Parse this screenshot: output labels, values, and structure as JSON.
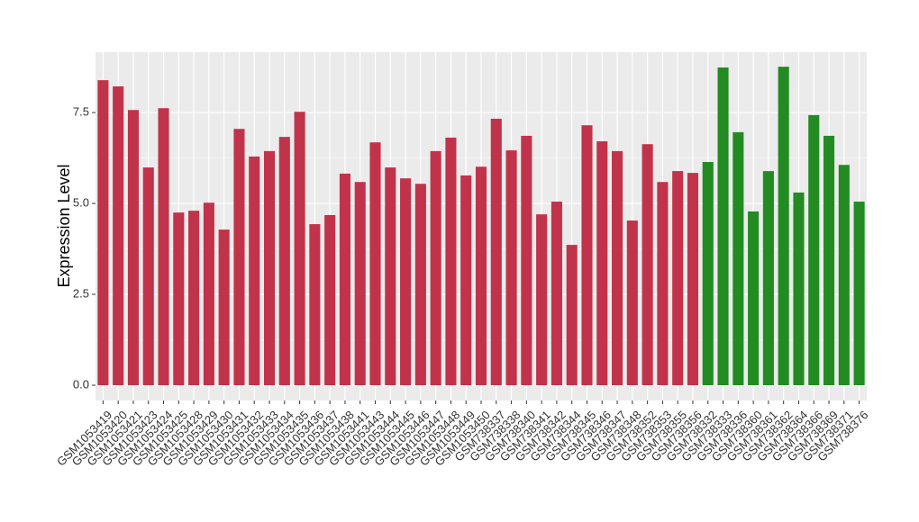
{
  "chart_data": {
    "type": "bar",
    "y_label": "Expression Level",
    "categories": [
      "GSM1053419",
      "GSM1053420",
      "GSM1053421",
      "GSM1053423",
      "GSM1053424",
      "GSM1053425",
      "GSM1053428",
      "GSM1053429",
      "GSM1053430",
      "GSM1053431",
      "GSM1053432",
      "GSM1053433",
      "GSM1053434",
      "GSM1053435",
      "GSM1053436",
      "GSM1053437",
      "GSM1053438",
      "GSM1053441",
      "GSM1053443",
      "GSM1053444",
      "GSM1053445",
      "GSM1053446",
      "GSM1053447",
      "GSM1053448",
      "GSM1053449",
      "GSM1053450",
      "GSM738337",
      "GSM738338",
      "GSM738340",
      "GSM738341",
      "GSM738342",
      "GSM738344",
      "GSM738345",
      "GSM738346",
      "GSM738347",
      "GSM738348",
      "GSM738352",
      "GSM738353",
      "GSM738355",
      "GSM738356",
      "GSM738332",
      "GSM738333",
      "GSM738336",
      "GSM738360",
      "GSM738361",
      "GSM738362",
      "GSM738364",
      "GSM738366",
      "GSM738369",
      "GSM738371",
      "GSM738376"
    ],
    "values": [
      8.39,
      8.22,
      7.57,
      5.99,
      7.62,
      4.75,
      4.8,
      5.02,
      4.28,
      7.05,
      6.29,
      6.44,
      6.83,
      7.52,
      4.43,
      4.68,
      5.82,
      5.59,
      6.68,
      5.99,
      5.69,
      5.54,
      6.44,
      6.81,
      5.77,
      6.01,
      7.33,
      6.46,
      6.86,
      4.7,
      5.05,
      3.86,
      7.15,
      6.71,
      6.44,
      4.53,
      6.63,
      5.59,
      5.89,
      5.84,
      6.14,
      8.74,
      6.96,
      4.78,
      5.89,
      8.76,
      5.3,
      7.43,
      6.86,
      6.06,
      5.05
    ],
    "colors": [
      "#c1334a",
      "#c1334a",
      "#c1334a",
      "#c1334a",
      "#c1334a",
      "#c1334a",
      "#c1334a",
      "#c1334a",
      "#c1334a",
      "#c1334a",
      "#c1334a",
      "#c1334a",
      "#c1334a",
      "#c1334a",
      "#c1334a",
      "#c1334a",
      "#c1334a",
      "#c1334a",
      "#c1334a",
      "#c1334a",
      "#c1334a",
      "#c1334a",
      "#c1334a",
      "#c1334a",
      "#c1334a",
      "#c1334a",
      "#c1334a",
      "#c1334a",
      "#c1334a",
      "#c1334a",
      "#c1334a",
      "#c1334a",
      "#c1334a",
      "#c1334a",
      "#c1334a",
      "#c1334a",
      "#c1334a",
      "#c1334a",
      "#c1334a",
      "#c1334a",
      "#228b22",
      "#228b22",
      "#228b22",
      "#228b22",
      "#228b22",
      "#228b22",
      "#228b22",
      "#228b22",
      "#228b22",
      "#228b22",
      "#228b22"
    ],
    "ylim": [
      -0.42,
      9.16
    ],
    "yticks": [
      {
        "value": 0,
        "label": "0.0"
      },
      2.5,
      {
        "value": 5,
        "label": "5.0"
      },
      7.5
    ],
    "grid": true
  }
}
